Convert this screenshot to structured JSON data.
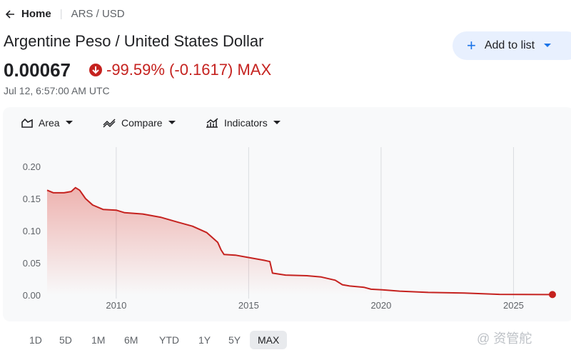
{
  "nav": {
    "back": "Home",
    "pair": "ARS / USD"
  },
  "header": {
    "title": "Argentine Peso / United States Dollar",
    "price": "0.00067",
    "change": "-99.59% (-0.1617)",
    "change_period": "MAX",
    "timestamp": "Jul 12, 6:57:00 AM UTC",
    "add_button": "Add to list"
  },
  "toolbar": [
    "Area",
    "Compare",
    "Indicators"
  ],
  "ranges": [
    {
      "label": "1D"
    },
    {
      "label": "5D"
    },
    {
      "label": "1M"
    },
    {
      "label": "6M"
    },
    {
      "label": "YTD"
    },
    {
      "label": "1Y"
    },
    {
      "label": "5Y"
    },
    {
      "label": "MAX",
      "selected": true
    }
  ],
  "watermark": "@ 资管舵",
  "chart_data": {
    "type": "area",
    "color": "#c5221f",
    "x": [
      2007.39,
      2007.63,
      2008.03,
      2008.3,
      2008.46,
      2008.62,
      2008.84,
      2009.11,
      2009.51,
      2010.0,
      2010.32,
      2011.0,
      2011.67,
      2012.35,
      2012.88,
      2013.42,
      2013.83,
      2013.96,
      2014.07,
      2014.5,
      2014.9,
      2015.58,
      2015.8,
      2015.9,
      2016.06,
      2016.39,
      2017.2,
      2017.74,
      2018.27,
      2018.54,
      2018.81,
      2019.35,
      2019.62,
      2020.05,
      2020.7,
      2021.78,
      2023.13,
      2024.47,
      2026.47
    ],
    "values": [
      0.163,
      0.159,
      0.159,
      0.161,
      0.167,
      0.163,
      0.15,
      0.14,
      0.133,
      0.132,
      0.128,
      0.126,
      0.121,
      0.113,
      0.107,
      0.097,
      0.082,
      0.07,
      0.063,
      0.062,
      0.059,
      0.054,
      0.052,
      0.034,
      0.033,
      0.031,
      0.03,
      0.028,
      0.023,
      0.016,
      0.014,
      0.012,
      0.009,
      0.008,
      0.006,
      0.004,
      0.003,
      0.001,
      0.00067
    ],
    "xlim": [
      2007.39,
      2026.47
    ],
    "ylim": [
      0,
      0.2
    ],
    "xticks": [
      2010,
      2015,
      2020,
      2025
    ],
    "yticks": [
      {
        "value": 0,
        "label": "0.00"
      },
      0.05,
      {
        "value": 0.1,
        "label": "0.10"
      },
      0.15,
      {
        "value": 0.2,
        "label": "0.20"
      }
    ],
    "grid": "x"
  }
}
